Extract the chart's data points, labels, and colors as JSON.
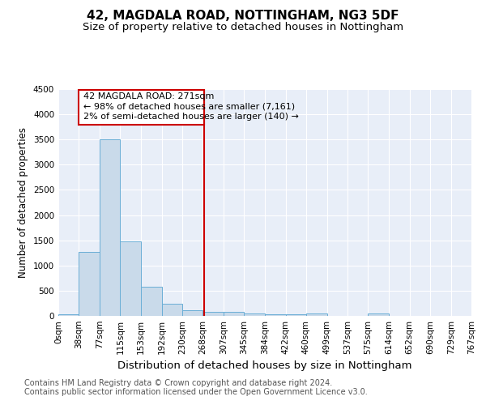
{
  "title1": "42, MAGDALA ROAD, NOTTINGHAM, NG3 5DF",
  "title2": "Size of property relative to detached houses in Nottingham",
  "xlabel": "Distribution of detached houses by size in Nottingham",
  "ylabel": "Number of detached properties",
  "property_label": "42 MAGDALA ROAD: 271sqm",
  "annotation_line1": "← 98% of detached houses are smaller (7,161)",
  "annotation_line2": "2% of semi-detached houses are larger (140) →",
  "footnote1": "Contains HM Land Registry data © Crown copyright and database right 2024.",
  "footnote2": "Contains public sector information licensed under the Open Government Licence v3.0.",
  "bar_edges": [
    0,
    38,
    77,
    115,
    153,
    192,
    230,
    268,
    307,
    345,
    384,
    422,
    460,
    499,
    537,
    575,
    614,
    652,
    690,
    729,
    767
  ],
  "bar_heights": [
    35,
    1270,
    3500,
    1480,
    580,
    240,
    115,
    75,
    80,
    55,
    40,
    40,
    50,
    0,
    0,
    55,
    0,
    0,
    0,
    0
  ],
  "bar_color": "#c9daea",
  "bar_edge_color": "#6aaed6",
  "vline_x": 271,
  "vline_color": "#cc0000",
  "box_color": "#cc0000",
  "ylim": [
    0,
    4500
  ],
  "yticks": [
    0,
    500,
    1000,
    1500,
    2000,
    2500,
    3000,
    3500,
    4000,
    4500
  ],
  "bg_color": "#e8eef8",
  "grid_color": "#ffffff",
  "title1_fontsize": 11,
  "title2_fontsize": 9.5,
  "xlabel_fontsize": 9.5,
  "ylabel_fontsize": 8.5,
  "annot_fontsize": 8,
  "tick_fontsize": 7.5,
  "footnote_fontsize": 7
}
